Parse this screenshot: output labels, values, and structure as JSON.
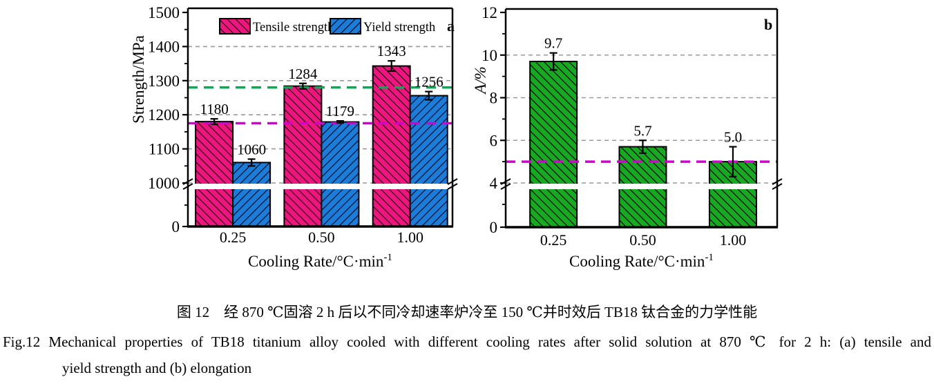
{
  "figure": {
    "caption_cn": "图 12　经 870 ℃固溶 2 h 后以不同冷却速率炉冷至 150 ℃并时效后 TB18 钛合金的力学性能",
    "caption_en_1": "Fig.12    Mechanical properties of TB18 titanium alloy cooled with different cooling rates after solid solution at 870 ℃ for 2 h: (a) tensile and",
    "caption_en_2": "yield strength and (b) elongation"
  },
  "chart_data": [
    {
      "type": "bar",
      "panel": "a",
      "ylabel": "Strength/MPa",
      "ylabel_italic": false,
      "xlabel": "Cooling Rate/°C·min",
      "xlabel_sup": "-1",
      "categories": [
        "0.25",
        "0.50",
        "1.00"
      ],
      "series": [
        {
          "name": "Tensile strength",
          "color": "#ED157E",
          "hatch": "/",
          "values": [
            1180,
            1284,
            1343
          ],
          "labels": [
            "1180",
            "1284",
            "1343"
          ],
          "errors": [
            8,
            8,
            15
          ]
        },
        {
          "name": "Yield strength",
          "color": "#1B7CD9",
          "hatch": "\\",
          "values": [
            1060,
            1179,
            1256
          ],
          "labels": [
            "1060",
            "1179",
            "1256"
          ],
          "errors": [
            10,
            3,
            12
          ]
        }
      ],
      "y_axis": {
        "upper_min": 1000,
        "upper_max": 1500,
        "major_ticks": [
          1000,
          1100,
          1200,
          1300,
          1400,
          1500
        ],
        "below_break_tick": "0",
        "break_at": 1000
      },
      "gridlines": [
        1000,
        1100,
        1200,
        1300,
        1400
      ],
      "ref_lines": [
        {
          "value": 1280,
          "color": "#00B050"
        },
        {
          "value": 1175,
          "color": "#D400D4"
        }
      ],
      "grid_color": "#999999",
      "legend": true
    },
    {
      "type": "bar",
      "panel": "b",
      "ylabel": "A/%",
      "ylabel_italic": true,
      "xlabel": "Cooling Rate/°C·min",
      "xlabel_sup": "-1",
      "categories": [
        "0.25",
        "0.50",
        "1.00"
      ],
      "series": [
        {
          "name": "Elongation",
          "color": "#18A822",
          "hatch": "/",
          "values": [
            9.7,
            5.7,
            5.0
          ],
          "labels": [
            "9.7",
            "5.7",
            "5.0"
          ],
          "errors": [
            0.4,
            0.3,
            0.7
          ]
        }
      ],
      "y_axis": {
        "upper_min": 4,
        "upper_max": 12,
        "major_ticks": [
          4,
          6,
          8,
          10,
          12
        ],
        "below_break_tick": "0",
        "break_at": 4
      },
      "gridlines": [
        4,
        6,
        8,
        10
      ],
      "ref_lines": [
        {
          "value": 5.0,
          "color": "#D400D4"
        }
      ],
      "grid_color": "#999999",
      "legend": false
    }
  ]
}
